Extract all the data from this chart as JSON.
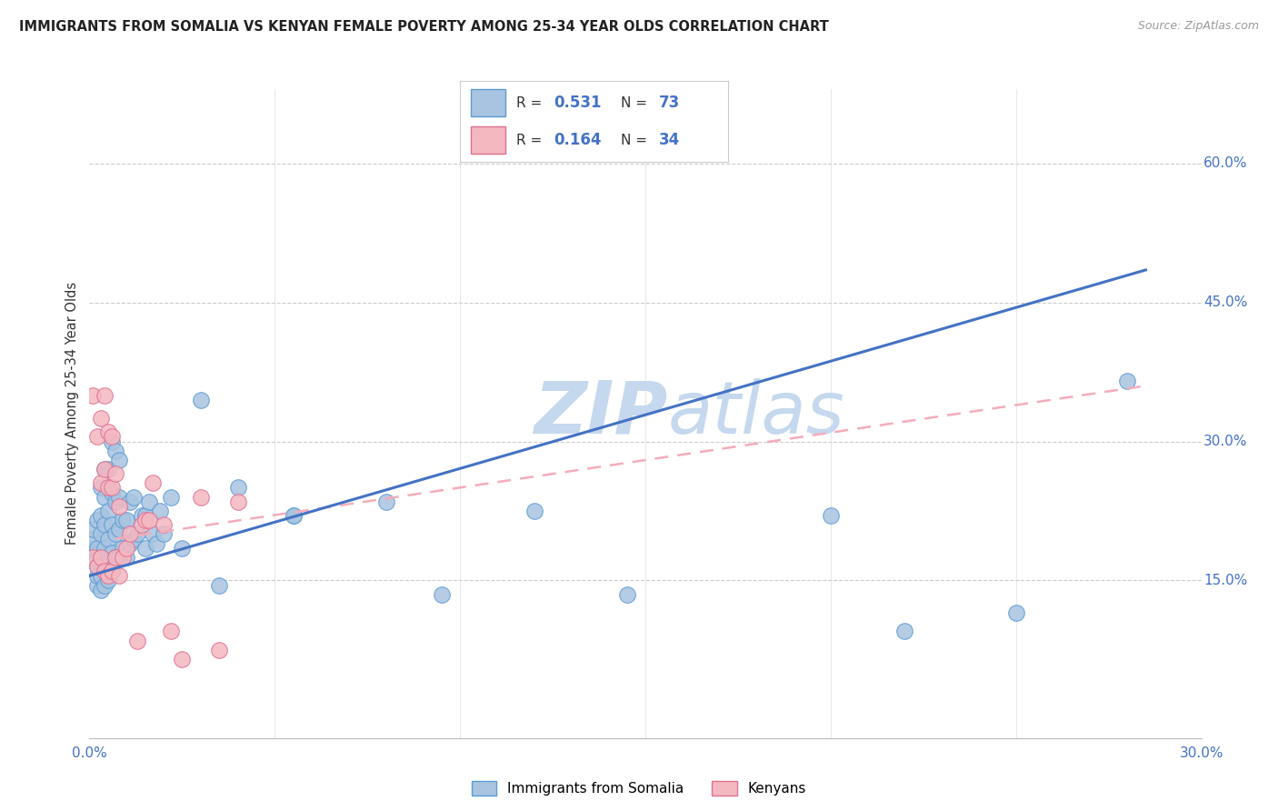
{
  "title": "IMMIGRANTS FROM SOMALIA VS KENYAN FEMALE POVERTY AMONG 25-34 YEAR OLDS CORRELATION CHART",
  "source": "Source: ZipAtlas.com",
  "ylabel": "Female Poverty Among 25-34 Year Olds",
  "xlim": [
    0.0,
    0.3
  ],
  "ylim": [
    -0.02,
    0.68
  ],
  "xtick_positions": [
    0.0,
    0.05,
    0.1,
    0.15,
    0.2,
    0.25,
    0.3
  ],
  "xtick_labels": [
    "0.0%",
    "",
    "",
    "",
    "",
    "",
    "30.0%"
  ],
  "ytick_right_vals": [
    0.15,
    0.3,
    0.45,
    0.6
  ],
  "ytick_right_labels": [
    "15.0%",
    "30.0%",
    "45.0%",
    "60.0%"
  ],
  "blue_fill": "#A8C4E0",
  "blue_edge": "#5B9BD5",
  "pink_fill": "#F4B8C1",
  "pink_edge": "#E07090",
  "blue_line_color": "#4472C4",
  "pink_line_color": "#F4ACBA",
  "watermark_color": "#C5D8EE",
  "legend_r1": "R = 0.531",
  "legend_n1": "N = 73",
  "legend_r2": "R = 0.164",
  "legend_n2": "N = 34",
  "series1_label": "Immigrants from Somalia",
  "series2_label": "Kenyans",
  "blue_line_x": [
    0.0,
    0.285
  ],
  "blue_line_y": [
    0.155,
    0.485
  ],
  "pink_line_x": [
    0.007,
    0.285
  ],
  "pink_line_y": [
    0.195,
    0.36
  ],
  "blue_points_x": [
    0.001,
    0.001,
    0.001,
    0.001,
    0.002,
    0.002,
    0.002,
    0.002,
    0.002,
    0.002,
    0.003,
    0.003,
    0.003,
    0.003,
    0.003,
    0.003,
    0.003,
    0.004,
    0.004,
    0.004,
    0.004,
    0.004,
    0.004,
    0.005,
    0.005,
    0.005,
    0.005,
    0.005,
    0.006,
    0.006,
    0.006,
    0.006,
    0.006,
    0.007,
    0.007,
    0.007,
    0.007,
    0.008,
    0.008,
    0.008,
    0.008,
    0.009,
    0.009,
    0.01,
    0.01,
    0.011,
    0.011,
    0.012,
    0.012,
    0.013,
    0.014,
    0.015,
    0.015,
    0.016,
    0.017,
    0.018,
    0.019,
    0.02,
    0.022,
    0.025,
    0.03,
    0.035,
    0.04,
    0.055,
    0.055,
    0.08,
    0.095,
    0.12,
    0.145,
    0.2,
    0.22,
    0.25,
    0.28
  ],
  "blue_points_y": [
    0.175,
    0.185,
    0.195,
    0.205,
    0.145,
    0.155,
    0.165,
    0.175,
    0.185,
    0.215,
    0.14,
    0.155,
    0.165,
    0.175,
    0.2,
    0.22,
    0.25,
    0.145,
    0.165,
    0.185,
    0.21,
    0.24,
    0.27,
    0.15,
    0.17,
    0.195,
    0.225,
    0.27,
    0.16,
    0.18,
    0.21,
    0.245,
    0.3,
    0.175,
    0.2,
    0.235,
    0.29,
    0.175,
    0.205,
    0.24,
    0.28,
    0.185,
    0.215,
    0.175,
    0.215,
    0.19,
    0.235,
    0.195,
    0.24,
    0.2,
    0.22,
    0.185,
    0.22,
    0.235,
    0.2,
    0.19,
    0.225,
    0.2,
    0.24,
    0.185,
    0.345,
    0.145,
    0.25,
    0.22,
    0.22,
    0.235,
    0.135,
    0.225,
    0.135,
    0.22,
    0.095,
    0.115,
    0.365
  ],
  "pink_points_x": [
    0.001,
    0.001,
    0.002,
    0.002,
    0.003,
    0.003,
    0.003,
    0.004,
    0.004,
    0.004,
    0.005,
    0.005,
    0.005,
    0.006,
    0.006,
    0.006,
    0.007,
    0.007,
    0.008,
    0.008,
    0.009,
    0.01,
    0.011,
    0.013,
    0.014,
    0.015,
    0.016,
    0.017,
    0.02,
    0.022,
    0.025,
    0.03,
    0.035,
    0.04
  ],
  "pink_points_y": [
    0.175,
    0.35,
    0.165,
    0.305,
    0.175,
    0.255,
    0.325,
    0.16,
    0.27,
    0.35,
    0.155,
    0.25,
    0.31,
    0.16,
    0.25,
    0.305,
    0.175,
    0.265,
    0.155,
    0.23,
    0.175,
    0.185,
    0.2,
    0.085,
    0.21,
    0.215,
    0.215,
    0.255,
    0.21,
    0.095,
    0.065,
    0.24,
    0.075,
    0.235
  ]
}
